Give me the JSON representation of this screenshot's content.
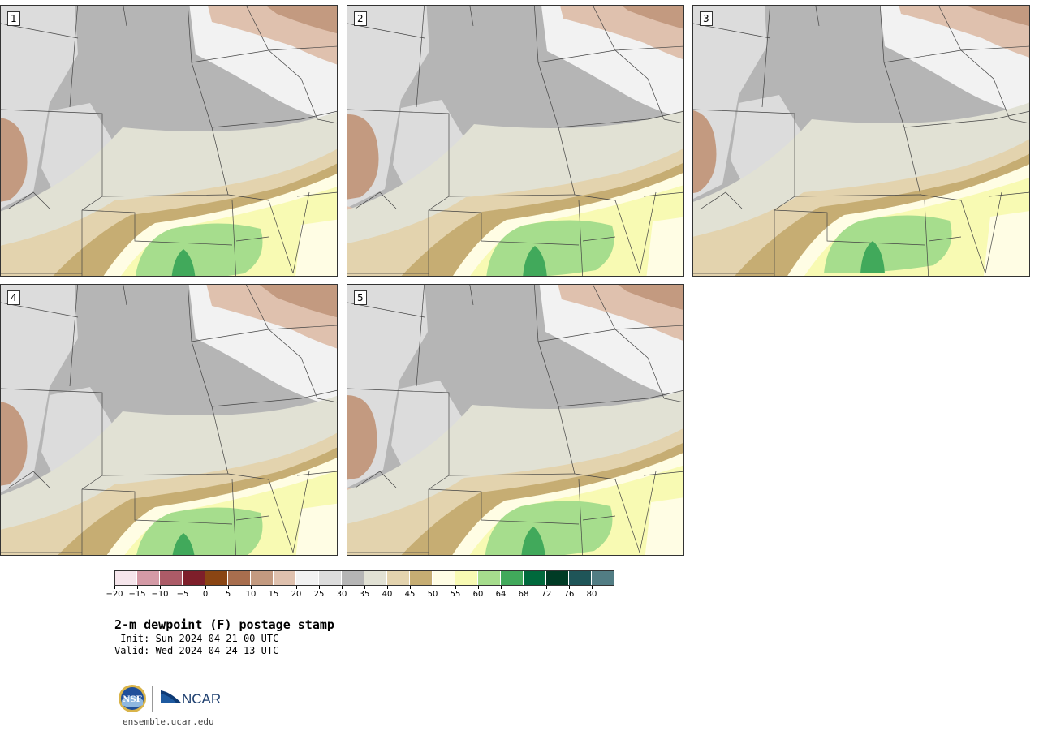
{
  "panels": [
    {
      "label": "1"
    },
    {
      "label": "2"
    },
    {
      "label": "3"
    },
    {
      "label": "4"
    },
    {
      "label": "5"
    }
  ],
  "colorbar": {
    "colors": [
      "#f6e6ec",
      "#d49aa6",
      "#ac5b67",
      "#7e1f2a",
      "#8a4513",
      "#a86e4e",
      "#c39a80",
      "#dfc1ae",
      "#f2f2f2",
      "#dcdcdc",
      "#b5b5b5",
      "#e1e1d4",
      "#e3d3ae",
      "#c6ad73",
      "#fffde4",
      "#f8fab3",
      "#a6dd8d",
      "#41a95b",
      "#00693c",
      "#003b25",
      "#1f5558",
      "#527d84"
    ],
    "ticks": [
      "−20",
      "−15",
      "−10",
      "−5",
      "0",
      "5",
      "10",
      "15",
      "20",
      "25",
      "30",
      "35",
      "40",
      "45",
      "50",
      "55",
      "60",
      "64",
      "68",
      "72",
      "76",
      "80"
    ]
  },
  "title": "2-m dewpoint (F) postage stamp",
  "init": " Init: Sun 2024-04-21 00 UTC",
  "valid": "Valid: Wed 2024-04-24 13 UTC",
  "logos": {
    "nsf": "NSF",
    "ncar": "NCAR"
  },
  "site": "ensemble.ucar.edu"
}
